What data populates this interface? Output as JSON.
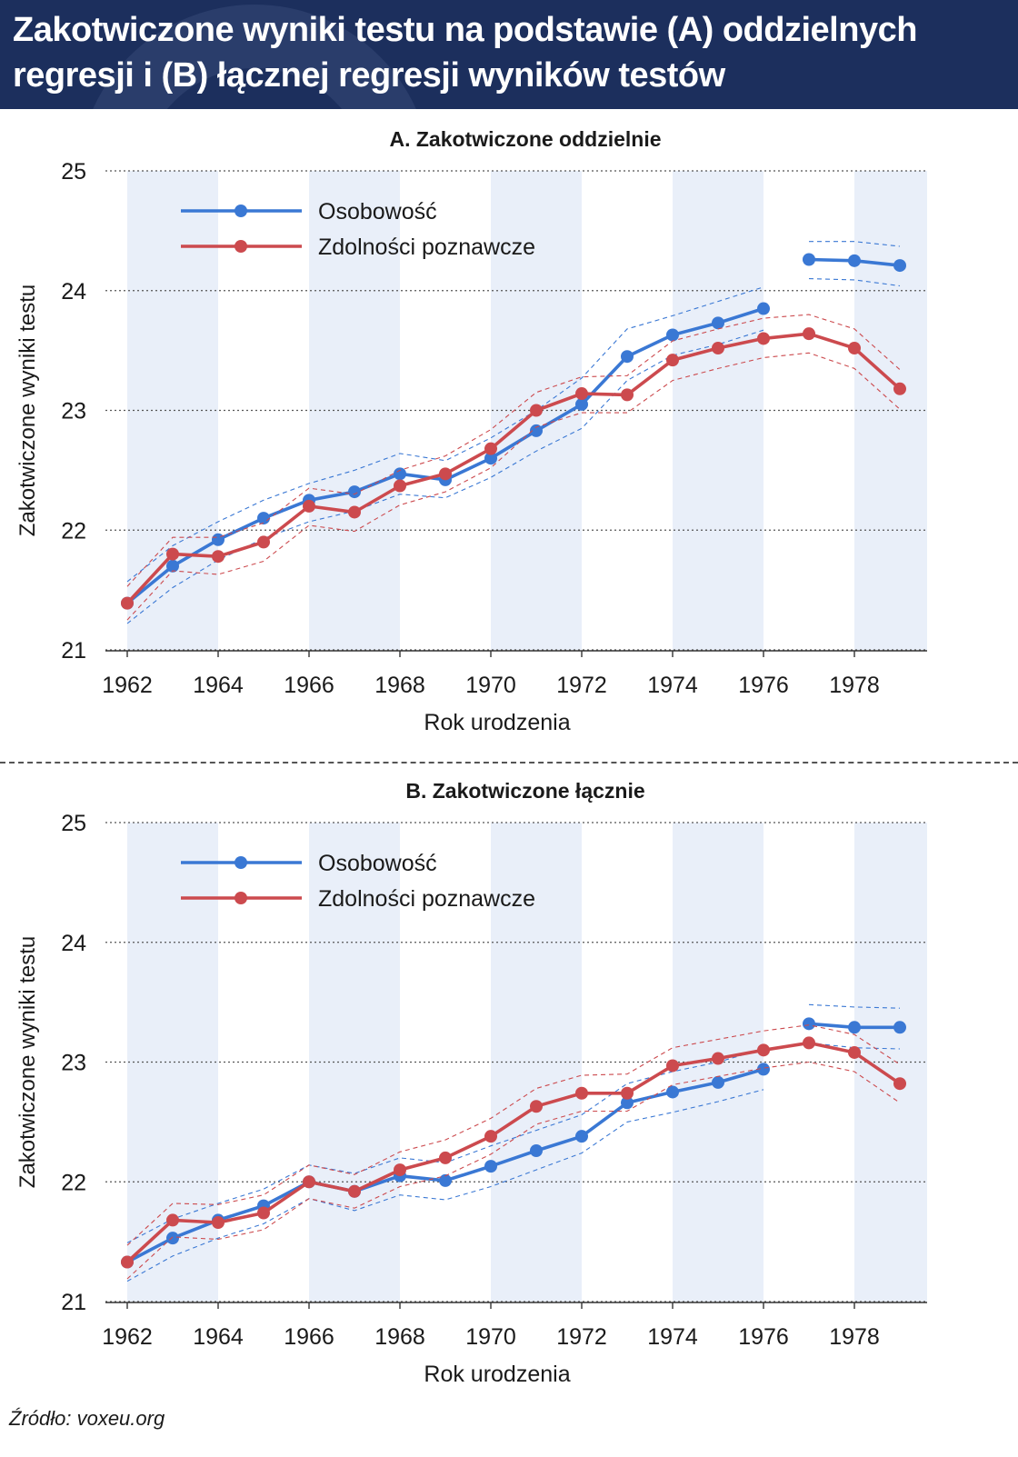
{
  "header": {
    "title_line1": "Zakotwiczone wyniki testu na podstawie (A) oddzielnych",
    "title_line2": "regresji i (B) łącznej regresji wyników testów"
  },
  "source": "Źródło: voxeu.org",
  "colors": {
    "header_bg": "#1c2f5d",
    "band": "#e9eff9",
    "personality": "#3a78d4",
    "cognitive": "#cc4a4e"
  },
  "chart_data": [
    {
      "type": "line",
      "title": "A. Zakotwiczone oddzielnie",
      "xlabel": "Rok urodzenia",
      "ylabel": "Zakotwiczone wyniki testu",
      "xlim": [
        1962,
        1979
      ],
      "ylim": [
        21,
        25
      ],
      "xticks": [
        1962,
        1964,
        1966,
        1968,
        1970,
        1972,
        1974,
        1976,
        1978
      ],
      "yticks": [
        21,
        22,
        23,
        24,
        25
      ],
      "grid": "horizontal dotted",
      "legend": "top-left",
      "series": [
        {
          "name": "Osobowość",
          "color": "#3a78d4",
          "x": [
            1962,
            1963,
            1964,
            1965,
            1966,
            1967,
            1968,
            1969,
            1970,
            1971,
            1972,
            1973,
            1974,
            1975,
            1976,
            1977,
            1978,
            1979
          ],
          "values": [
            21.39,
            21.7,
            21.92,
            22.1,
            22.25,
            22.32,
            22.47,
            22.42,
            22.6,
            22.83,
            23.05,
            23.45,
            23.63,
            23.73,
            23.85,
            24.26,
            24.25,
            24.21
          ],
          "gap_after": 1976,
          "ci_upper": [
            21.57,
            21.87,
            22.07,
            22.25,
            22.39,
            22.5,
            22.64,
            22.58,
            22.77,
            23.0,
            23.27,
            23.68,
            23.79,
            23.91,
            24.03,
            24.41,
            24.41,
            24.37
          ],
          "ci_lower": [
            21.22,
            21.52,
            21.75,
            21.93,
            22.07,
            22.16,
            22.3,
            22.27,
            22.44,
            22.66,
            22.85,
            23.25,
            23.46,
            23.55,
            23.67,
            24.1,
            24.09,
            24.04
          ]
        },
        {
          "name": "Zdolności poznawcze",
          "color": "#cc4a4e",
          "x": [
            1962,
            1963,
            1964,
            1965,
            1966,
            1967,
            1968,
            1969,
            1970,
            1971,
            1972,
            1973,
            1974,
            1975,
            1976,
            1977,
            1978,
            1979
          ],
          "values": [
            21.39,
            21.8,
            21.78,
            21.9,
            22.2,
            22.15,
            22.37,
            22.47,
            22.68,
            23.0,
            23.14,
            23.13,
            23.42,
            23.52,
            23.6,
            23.64,
            23.52,
            23.18
          ],
          "ci_upper": [
            21.53,
            21.94,
            21.94,
            22.06,
            22.35,
            22.3,
            22.5,
            22.62,
            22.84,
            23.15,
            23.28,
            23.29,
            23.58,
            23.68,
            23.77,
            23.8,
            23.68,
            23.34
          ],
          "ci_lower": [
            21.25,
            21.66,
            21.63,
            21.74,
            22.04,
            21.99,
            22.21,
            22.32,
            22.52,
            22.86,
            22.98,
            22.98,
            23.25,
            23.35,
            23.44,
            23.48,
            23.35,
            23.01
          ]
        }
      ]
    },
    {
      "type": "line",
      "title": "B. Zakotwiczone łącznie",
      "xlabel": "Rok urodzenia",
      "ylabel": "Zakotwiczone wyniki testu",
      "xlim": [
        1962,
        1979
      ],
      "ylim": [
        21,
        25
      ],
      "xticks": [
        1962,
        1964,
        1966,
        1968,
        1970,
        1972,
        1974,
        1976,
        1978
      ],
      "yticks": [
        21,
        22,
        23,
        24,
        25
      ],
      "grid": "horizontal dotted",
      "legend": "top-left",
      "series": [
        {
          "name": "Osobowość",
          "color": "#3a78d4",
          "x": [
            1962,
            1963,
            1964,
            1965,
            1966,
            1967,
            1968,
            1969,
            1970,
            1971,
            1972,
            1973,
            1974,
            1975,
            1976,
            1977,
            1978,
            1979
          ],
          "values": [
            21.33,
            21.53,
            21.68,
            21.8,
            22.0,
            21.92,
            22.05,
            22.01,
            22.13,
            22.26,
            22.38,
            22.66,
            22.75,
            22.83,
            22.94,
            23.32,
            23.29,
            23.29
          ],
          "gap_after": 1976,
          "ci_upper": [
            21.49,
            21.69,
            21.82,
            21.94,
            22.14,
            22.07,
            22.2,
            22.16,
            22.3,
            22.43,
            22.56,
            22.82,
            22.92,
            23.0,
            23.11,
            23.48,
            23.46,
            23.45
          ],
          "ci_lower": [
            21.17,
            21.38,
            21.53,
            21.65,
            21.86,
            21.76,
            21.89,
            21.85,
            21.96,
            22.1,
            22.24,
            22.5,
            22.58,
            22.67,
            22.77,
            23.16,
            23.12,
            23.11
          ]
        },
        {
          "name": "Zdolności poznawcze",
          "color": "#cc4a4e",
          "x": [
            1962,
            1963,
            1964,
            1965,
            1966,
            1967,
            1968,
            1969,
            1970,
            1971,
            1972,
            1973,
            1974,
            1975,
            1976,
            1977,
            1978,
            1979
          ],
          "values": [
            21.33,
            21.68,
            21.66,
            21.74,
            22.0,
            21.92,
            22.1,
            22.2,
            22.38,
            22.63,
            22.74,
            22.74,
            22.97,
            23.03,
            23.1,
            23.16,
            23.08,
            22.82
          ],
          "ci_upper": [
            21.47,
            21.82,
            21.81,
            21.89,
            22.14,
            22.06,
            22.25,
            22.35,
            22.53,
            22.78,
            22.89,
            22.9,
            23.12,
            23.19,
            23.26,
            23.31,
            23.23,
            22.98
          ],
          "ci_lower": [
            21.19,
            21.54,
            21.52,
            21.6,
            21.86,
            21.78,
            21.96,
            22.05,
            22.23,
            22.48,
            22.59,
            22.59,
            22.81,
            22.88,
            22.95,
            23.0,
            22.92,
            22.66
          ]
        }
      ]
    }
  ]
}
